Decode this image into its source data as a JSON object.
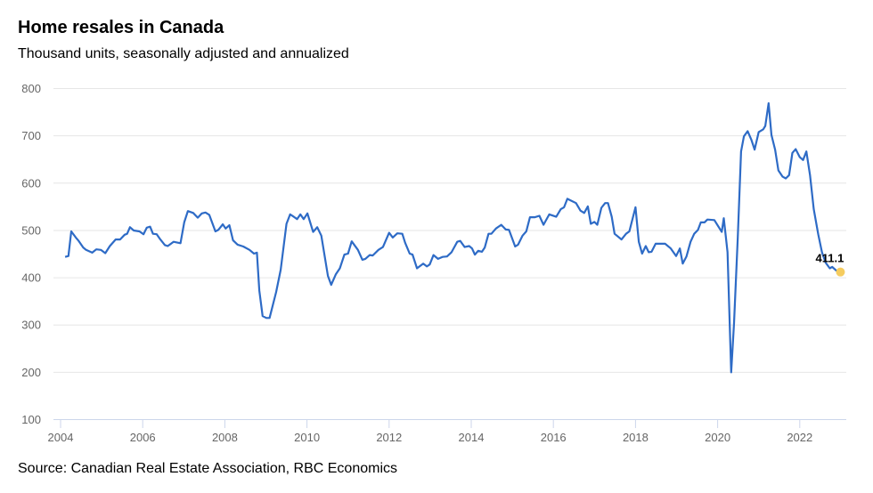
{
  "chart_data": {
    "type": "line",
    "title": "Home resales in Canada",
    "subtitle": "Thousand units, seasonally adjusted and annualized",
    "source": "Source: Canadian Real Estate Association, RBC Economics",
    "xlabel": "",
    "ylabel": "",
    "xlim": [
      2004,
      2023
    ],
    "ylim": [
      100,
      800
    ],
    "x_ticks": [
      "2004",
      "2006",
      "2008",
      "2010",
      "2012",
      "2014",
      "2016",
      "2018",
      "2020",
      "2022"
    ],
    "y_ticks": [
      "100",
      "200",
      "300",
      "400",
      "500",
      "600",
      "700",
      "800"
    ],
    "grid": true,
    "line_color": "#2e6bc6",
    "marker_color": "#f5cc5f",
    "last_value_label": "411.1",
    "series": [
      {
        "points": [
          [
            2004.11,
            443
          ],
          [
            2004.19,
            445
          ],
          [
            2004.26,
            497
          ],
          [
            2004.37,
            484
          ],
          [
            2004.44,
            477
          ],
          [
            2004.55,
            463
          ],
          [
            2004.62,
            458
          ],
          [
            2004.77,
            452
          ],
          [
            2004.87,
            459
          ],
          [
            2004.98,
            458
          ],
          [
            2005.09,
            451
          ],
          [
            2005.2,
            466
          ],
          [
            2005.34,
            480
          ],
          [
            2005.45,
            480
          ],
          [
            2005.56,
            490
          ],
          [
            2005.62,
            492
          ],
          [
            2005.69,
            506
          ],
          [
            2005.78,
            499
          ],
          [
            2005.92,
            497
          ],
          [
            2006.02,
            491
          ],
          [
            2006.1,
            505
          ],
          [
            2006.18,
            507
          ],
          [
            2006.25,
            492
          ],
          [
            2006.34,
            491
          ],
          [
            2006.43,
            480
          ],
          [
            2006.54,
            468
          ],
          [
            2006.61,
            466
          ],
          [
            2006.75,
            475
          ],
          [
            2006.92,
            472
          ],
          [
            2007.01,
            516
          ],
          [
            2007.1,
            540
          ],
          [
            2007.23,
            536
          ],
          [
            2007.34,
            526
          ],
          [
            2007.44,
            535
          ],
          [
            2007.53,
            537
          ],
          [
            2007.62,
            532
          ],
          [
            2007.77,
            497
          ],
          [
            2007.84,
            500
          ],
          [
            2007.95,
            512
          ],
          [
            2008.02,
            503
          ],
          [
            2008.11,
            510
          ],
          [
            2008.2,
            478
          ],
          [
            2008.31,
            469
          ],
          [
            2008.45,
            465
          ],
          [
            2008.6,
            458
          ],
          [
            2008.71,
            450
          ],
          [
            2008.78,
            452
          ],
          [
            2008.84,
            372
          ],
          [
            2008.92,
            318
          ],
          [
            2009.01,
            314
          ],
          [
            2009.09,
            314
          ],
          [
            2009.25,
            369
          ],
          [
            2009.36,
            416
          ],
          [
            2009.5,
            513
          ],
          [
            2009.59,
            533
          ],
          [
            2009.68,
            528
          ],
          [
            2009.76,
            523
          ],
          [
            2009.84,
            533
          ],
          [
            2009.92,
            523
          ],
          [
            2010.01,
            535
          ],
          [
            2010.15,
            496
          ],
          [
            2010.25,
            506
          ],
          [
            2010.35,
            488
          ],
          [
            2010.51,
            403
          ],
          [
            2010.59,
            384
          ],
          [
            2010.7,
            406
          ],
          [
            2010.8,
            419
          ],
          [
            2010.91,
            448
          ],
          [
            2011.0,
            450
          ],
          [
            2011.09,
            476
          ],
          [
            2011.24,
            458
          ],
          [
            2011.35,
            437
          ],
          [
            2011.42,
            439
          ],
          [
            2011.53,
            447
          ],
          [
            2011.6,
            446
          ],
          [
            2011.74,
            458
          ],
          [
            2011.85,
            464
          ],
          [
            2012.0,
            494
          ],
          [
            2012.09,
            484
          ],
          [
            2012.2,
            493
          ],
          [
            2012.32,
            492
          ],
          [
            2012.39,
            473
          ],
          [
            2012.5,
            450
          ],
          [
            2012.57,
            448
          ],
          [
            2012.68,
            419
          ],
          [
            2012.83,
            429
          ],
          [
            2012.92,
            423
          ],
          [
            2012.99,
            427
          ],
          [
            2013.08,
            447
          ],
          [
            2013.19,
            439
          ],
          [
            2013.3,
            443
          ],
          [
            2013.41,
            444
          ],
          [
            2013.52,
            453
          ],
          [
            2013.66,
            475
          ],
          [
            2013.73,
            477
          ],
          [
            2013.84,
            464
          ],
          [
            2013.95,
            466
          ],
          [
            2014.02,
            461
          ],
          [
            2014.09,
            448
          ],
          [
            2014.17,
            456
          ],
          [
            2014.26,
            454
          ],
          [
            2014.33,
            463
          ],
          [
            2014.42,
            492
          ],
          [
            2014.49,
            492
          ],
          [
            2014.6,
            503
          ],
          [
            2014.73,
            511
          ],
          [
            2014.84,
            501
          ],
          [
            2014.92,
            500
          ],
          [
            2015.07,
            465
          ],
          [
            2015.14,
            469
          ],
          [
            2015.25,
            488
          ],
          [
            2015.34,
            497
          ],
          [
            2015.43,
            527
          ],
          [
            2015.55,
            527
          ],
          [
            2015.66,
            530
          ],
          [
            2015.76,
            511
          ],
          [
            2015.9,
            533
          ],
          [
            2016.07,
            528
          ],
          [
            2016.18,
            544
          ],
          [
            2016.26,
            548
          ],
          [
            2016.34,
            566
          ],
          [
            2016.41,
            563
          ],
          [
            2016.55,
            557
          ],
          [
            2016.66,
            541
          ],
          [
            2016.75,
            536
          ],
          [
            2016.84,
            550
          ],
          [
            2016.91,
            513
          ],
          [
            2017.0,
            517
          ],
          [
            2017.07,
            511
          ],
          [
            2017.17,
            547
          ],
          [
            2017.26,
            557
          ],
          [
            2017.33,
            557
          ],
          [
            2017.42,
            528
          ],
          [
            2017.49,
            492
          ],
          [
            2017.66,
            480
          ],
          [
            2017.77,
            492
          ],
          [
            2017.85,
            497
          ],
          [
            2018.0,
            548
          ],
          [
            2018.08,
            475
          ],
          [
            2018.16,
            450
          ],
          [
            2018.25,
            466
          ],
          [
            2018.32,
            453
          ],
          [
            2018.39,
            454
          ],
          [
            2018.49,
            471
          ],
          [
            2018.72,
            471
          ],
          [
            2018.86,
            461
          ],
          [
            2018.99,
            445
          ],
          [
            2019.08,
            461
          ],
          [
            2019.15,
            429
          ],
          [
            2019.24,
            444
          ],
          [
            2019.34,
            475
          ],
          [
            2019.43,
            492
          ],
          [
            2019.52,
            500
          ],
          [
            2019.59,
            516
          ],
          [
            2019.68,
            516
          ],
          [
            2019.75,
            522
          ],
          [
            2019.92,
            521
          ],
          [
            2020.1,
            496
          ],
          [
            2020.15,
            525
          ],
          [
            2020.24,
            453
          ],
          [
            2020.33,
            199
          ],
          [
            2020.4,
            303
          ],
          [
            2020.49,
            484
          ],
          [
            2020.57,
            666
          ],
          [
            2020.64,
            698
          ],
          [
            2020.73,
            709
          ],
          [
            2020.82,
            691
          ],
          [
            2020.9,
            670
          ],
          [
            2021.0,
            707
          ],
          [
            2021.11,
            713
          ],
          [
            2021.16,
            720
          ],
          [
            2021.24,
            768
          ],
          [
            2021.31,
            701
          ],
          [
            2021.4,
            670
          ],
          [
            2021.48,
            626
          ],
          [
            2021.58,
            613
          ],
          [
            2021.66,
            609
          ],
          [
            2021.74,
            616
          ],
          [
            2021.82,
            663
          ],
          [
            2021.9,
            671
          ],
          [
            2022.0,
            654
          ],
          [
            2022.08,
            648
          ],
          [
            2022.16,
            666
          ],
          [
            2022.25,
            616
          ],
          [
            2022.34,
            544
          ],
          [
            2022.45,
            491
          ],
          [
            2022.54,
            453
          ],
          [
            2022.63,
            431
          ],
          [
            2022.73,
            419
          ],
          [
            2022.79,
            422
          ],
          [
            2022.89,
            414
          ],
          [
            2022.99,
            411.1
          ]
        ]
      }
    ]
  }
}
